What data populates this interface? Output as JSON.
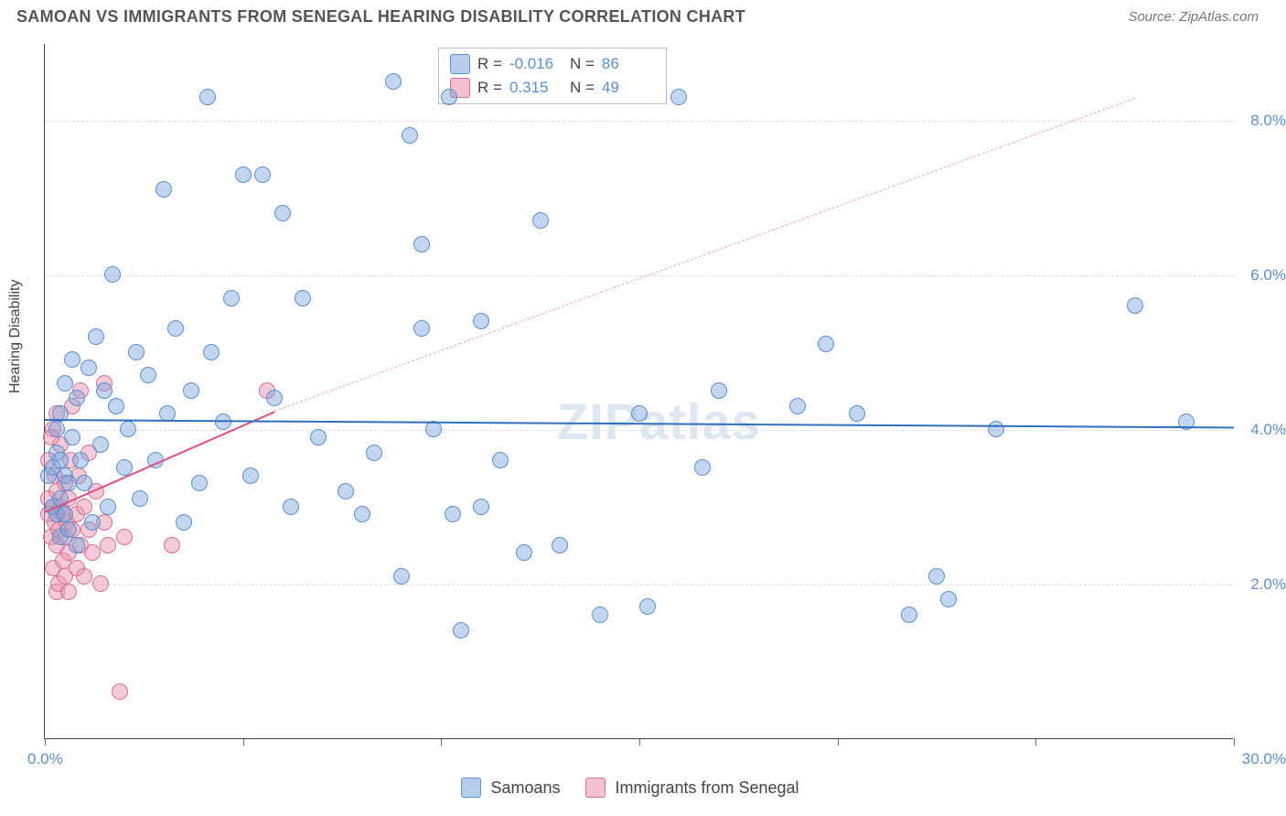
{
  "header": {
    "title": "SAMOAN VS IMMIGRANTS FROM SENEGAL HEARING DISABILITY CORRELATION CHART",
    "source": "Source: ZipAtlas.com"
  },
  "chart": {
    "type": "scatter",
    "ylabel": "Hearing Disability",
    "watermark": "ZIPatlas",
    "background_color": "#ffffff",
    "grid_color": "#dddddd",
    "axis_color": "#444444",
    "xlim": [
      0,
      30
    ],
    "ylim": [
      0,
      9
    ],
    "ygrid_values": [
      2.0,
      4.0,
      6.0,
      8.0
    ],
    "ytick_labels": [
      "2.0%",
      "4.0%",
      "6.0%",
      "8.0%"
    ],
    "ytick_label_color": "#5a8fd4",
    "xtick_positions": [
      0,
      5,
      10,
      15,
      20,
      25,
      30
    ],
    "xaxis_min_label": "0.0%",
    "xaxis_max_label": "30.0%",
    "xaxis_label_color": "#5a8fd4",
    "marker_size": 18,
    "series": {
      "samoans": {
        "label": "Samoans",
        "fill": "rgba(120,165,220,0.45)",
        "stroke": "#5a8fd4",
        "R": "-0.016",
        "N": "86",
        "trend": {
          "x1": 0,
          "y1": 4.15,
          "x2": 30,
          "y2": 4.05,
          "color": "#2f6fc0",
          "width": 2.5,
          "dash": "solid"
        },
        "trend_ext": null,
        "points": [
          [
            0.1,
            3.4
          ],
          [
            0.2,
            3.0
          ],
          [
            0.2,
            3.5
          ],
          [
            0.3,
            2.9
          ],
          [
            0.3,
            3.7
          ],
          [
            0.3,
            4.0
          ],
          [
            0.4,
            2.6
          ],
          [
            0.4,
            3.1
          ],
          [
            0.4,
            3.6
          ],
          [
            0.4,
            4.2
          ],
          [
            0.5,
            2.9
          ],
          [
            0.5,
            3.4
          ],
          [
            0.5,
            4.6
          ],
          [
            0.6,
            2.7
          ],
          [
            0.6,
            3.3
          ],
          [
            0.7,
            3.9
          ],
          [
            0.8,
            4.4
          ],
          [
            0.8,
            2.5
          ],
          [
            0.9,
            3.6
          ],
          [
            1.0,
            3.3
          ],
          [
            1.1,
            4.8
          ],
          [
            1.3,
            5.2
          ],
          [
            1.4,
            3.8
          ],
          [
            1.5,
            4.5
          ],
          [
            1.6,
            3.0
          ],
          [
            1.7,
            6.0
          ],
          [
            1.8,
            4.3
          ],
          [
            2.0,
            3.5
          ],
          [
            2.1,
            4.0
          ],
          [
            2.3,
            5.0
          ],
          [
            2.4,
            3.1
          ],
          [
            2.6,
            4.7
          ],
          [
            2.8,
            3.6
          ],
          [
            3.0,
            7.1
          ],
          [
            3.1,
            4.2
          ],
          [
            3.3,
            5.3
          ],
          [
            3.5,
            2.8
          ],
          [
            3.7,
            4.5
          ],
          [
            3.9,
            3.3
          ],
          [
            4.1,
            8.3
          ],
          [
            4.2,
            5.0
          ],
          [
            4.5,
            4.1
          ],
          [
            4.7,
            5.7
          ],
          [
            5.0,
            7.3
          ],
          [
            5.2,
            3.4
          ],
          [
            5.5,
            7.3
          ],
          [
            5.8,
            4.4
          ],
          [
            6.0,
            6.8
          ],
          [
            6.2,
            3.0
          ],
          [
            6.5,
            5.7
          ],
          [
            6.9,
            3.9
          ],
          [
            7.6,
            3.2
          ],
          [
            8.0,
            2.9
          ],
          [
            8.3,
            3.7
          ],
          [
            8.8,
            8.5
          ],
          [
            9.0,
            2.1
          ],
          [
            9.2,
            7.8
          ],
          [
            9.5,
            5.3
          ],
          [
            9.5,
            6.4
          ],
          [
            9.8,
            4.0
          ],
          [
            10.2,
            8.3
          ],
          [
            10.3,
            2.9
          ],
          [
            10.5,
            1.4
          ],
          [
            11.0,
            3.0
          ],
          [
            11.0,
            5.4
          ],
          [
            11.5,
            3.6
          ],
          [
            12.1,
            2.4
          ],
          [
            12.5,
            6.7
          ],
          [
            13.0,
            2.5
          ],
          [
            14.0,
            1.6
          ],
          [
            15.0,
            4.2
          ],
          [
            15.2,
            1.7
          ],
          [
            16.0,
            8.3
          ],
          [
            16.6,
            3.5
          ],
          [
            17.0,
            4.5
          ],
          [
            19.0,
            4.3
          ],
          [
            19.7,
            5.1
          ],
          [
            20.5,
            4.2
          ],
          [
            21.8,
            1.6
          ],
          [
            22.5,
            2.1
          ],
          [
            22.8,
            1.8
          ],
          [
            24.0,
            4.0
          ],
          [
            27.5,
            5.6
          ],
          [
            28.8,
            4.1
          ],
          [
            0.7,
            4.9
          ],
          [
            1.2,
            2.8
          ]
        ]
      },
      "senegal": {
        "label": "Immigrants from Senegal",
        "fill": "rgba(235,150,175,0.50)",
        "stroke": "#d86f94",
        "R": "0.315",
        "N": "49",
        "trend": {
          "x1": 0,
          "y1": 2.95,
          "x2": 5.8,
          "y2": 4.25,
          "color": "#e0517b",
          "width": 2.5,
          "dash": "solid"
        },
        "trend_ext": {
          "x1": 5.8,
          "y1": 4.25,
          "x2": 27.5,
          "y2": 8.3,
          "color": "#e9a7bb",
          "width": 1.5,
          "dash": "dashed"
        },
        "points": [
          [
            0.1,
            2.9
          ],
          [
            0.1,
            3.1
          ],
          [
            0.1,
            3.6
          ],
          [
            0.15,
            2.6
          ],
          [
            0.2,
            2.2
          ],
          [
            0.2,
            3.0
          ],
          [
            0.2,
            4.0
          ],
          [
            0.25,
            2.8
          ],
          [
            0.25,
            3.4
          ],
          [
            0.3,
            1.9
          ],
          [
            0.3,
            2.5
          ],
          [
            0.3,
            3.2
          ],
          [
            0.3,
            4.2
          ],
          [
            0.35,
            2.0
          ],
          [
            0.35,
            2.7
          ],
          [
            0.4,
            3.0
          ],
          [
            0.4,
            3.8
          ],
          [
            0.45,
            2.3
          ],
          [
            0.45,
            2.9
          ],
          [
            0.5,
            2.1
          ],
          [
            0.5,
            2.6
          ],
          [
            0.5,
            3.3
          ],
          [
            0.55,
            2.8
          ],
          [
            0.6,
            2.4
          ],
          [
            0.6,
            3.1
          ],
          [
            0.65,
            3.6
          ],
          [
            0.7,
            2.7
          ],
          [
            0.7,
            4.3
          ],
          [
            0.8,
            2.2
          ],
          [
            0.8,
            2.9
          ],
          [
            0.85,
            3.4
          ],
          [
            0.9,
            2.5
          ],
          [
            0.9,
            4.5
          ],
          [
            1.0,
            2.1
          ],
          [
            1.0,
            3.0
          ],
          [
            1.1,
            2.7
          ],
          [
            1.1,
            3.7
          ],
          [
            1.2,
            2.4
          ],
          [
            1.3,
            3.2
          ],
          [
            1.4,
            2.0
          ],
          [
            1.5,
            2.8
          ],
          [
            1.6,
            2.5
          ],
          [
            1.5,
            4.6
          ],
          [
            1.9,
            0.6
          ],
          [
            2.0,
            2.6
          ],
          [
            3.2,
            2.5
          ],
          [
            5.6,
            4.5
          ],
          [
            0.15,
            3.9
          ],
          [
            0.6,
            1.9
          ]
        ]
      }
    },
    "legend_top": {
      "rows": [
        {
          "swatch_fill": "rgba(120,165,220,0.55)",
          "swatch_stroke": "#5a8fd4",
          "R_label": "R =",
          "R_val": "-0.016",
          "N_label": "N =",
          "N_val": "86"
        },
        {
          "swatch_fill": "rgba(235,150,175,0.60)",
          "swatch_stroke": "#d86f94",
          "R_label": "R =",
          "R_val": "0.315",
          "N_label": "N =",
          "N_val": "49"
        }
      ]
    },
    "legend_bottom": [
      {
        "swatch_fill": "rgba(120,165,220,0.55)",
        "swatch_stroke": "#5a8fd4",
        "label": "Samoans"
      },
      {
        "swatch_fill": "rgba(235,150,175,0.60)",
        "swatch_stroke": "#d86f94",
        "label": "Immigrants from Senegal"
      }
    ]
  }
}
